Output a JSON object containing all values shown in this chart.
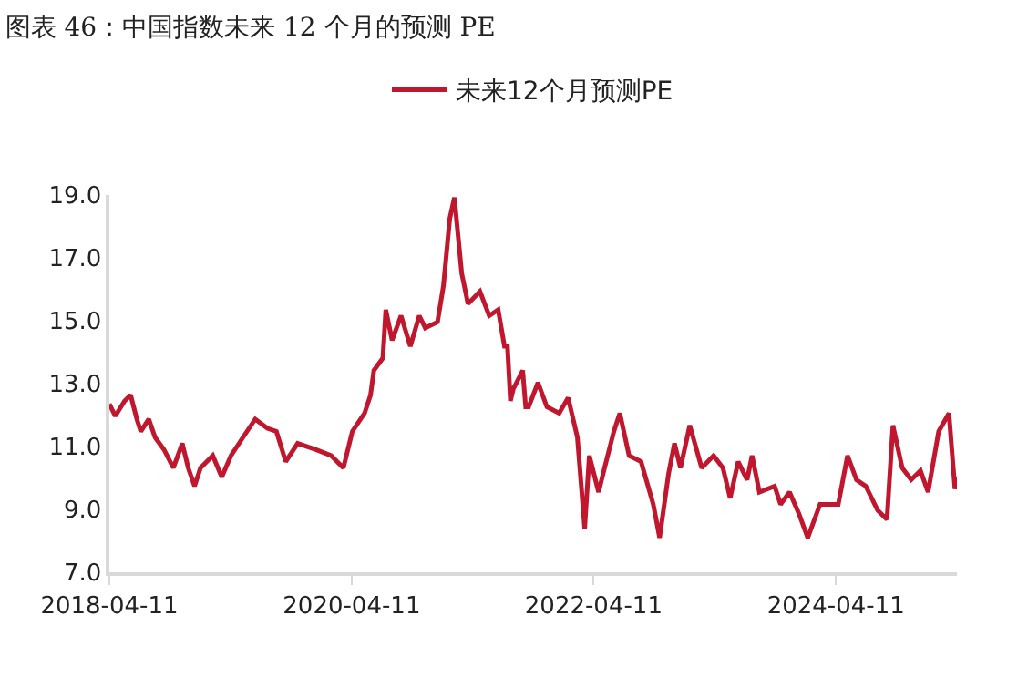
{
  "chart_data": {
    "type": "line",
    "title": "图表 46：中国指数未来 12 个月的预测 PE",
    "legend": "top",
    "marker": "none",
    "line_style": "solid",
    "xlim": [
      "2018-04-11",
      "2025-04-11"
    ],
    "xticks": [
      "2018-04-11",
      "2020-04-11",
      "2022-04-11",
      "2024-04-11"
    ],
    "ylim": [
      7,
      19
    ],
    "yticks": [
      {
        "value": 7,
        "label": "7.0"
      },
      {
        "value": 9,
        "label": "9.0"
      },
      {
        "value": 11,
        "label": "11.0"
      },
      {
        "value": 13,
        "label": "13.0"
      },
      {
        "value": 15,
        "label": "15.0"
      },
      {
        "value": 17,
        "label": "17.0"
      },
      {
        "value": 19,
        "label": "19.0"
      }
    ],
    "x": [
      "2018-04-11",
      "2018-04-29",
      "2018-05-27",
      "2018-06-14",
      "2018-07-03",
      "2018-07-15",
      "2018-08-08",
      "2018-08-27",
      "2018-09-23",
      "2018-10-21",
      "2018-11-17",
      "2018-12-05",
      "2018-12-24",
      "2019-01-11",
      "2019-02-17",
      "2019-03-16",
      "2019-04-13",
      "2019-05-19",
      "2019-06-25",
      "2019-08-01",
      "2019-08-28",
      "2019-09-25",
      "2019-10-31",
      "2019-12-25",
      "2020-02-09",
      "2020-03-17",
      "2020-04-13",
      "2020-05-20",
      "2020-06-07",
      "2020-06-17",
      "2020-07-14",
      "2020-07-23",
      "2020-08-11",
      "2020-09-07",
      "2020-10-05",
      "2020-11-01",
      "2020-11-19",
      "2020-12-26",
      "2021-01-13",
      "2021-02-01",
      "2021-02-15",
      "2021-03-09",
      "2021-03-28",
      "2021-05-03",
      "2021-05-31",
      "2021-06-27",
      "2021-07-16",
      "2021-07-25",
      "2021-08-03",
      "2021-08-12",
      "2021-08-31",
      "2021-09-09",
      "2021-09-18",
      "2021-09-27",
      "2021-10-25",
      "2021-11-21",
      "2021-12-28",
      "2022-01-24",
      "2022-02-21",
      "2022-03-15",
      "2022-03-29",
      "2022-04-26",
      "2022-05-14",
      "2022-06-11",
      "2022-06-29",
      "2022-07-27",
      "2022-09-01",
      "2022-10-08",
      "2022-10-27",
      "2022-11-23",
      "2022-12-11",
      "2022-12-29",
      "2023-01-26",
      "2023-03-03",
      "2023-04-08",
      "2023-05-06",
      "2023-05-28",
      "2023-06-21",
      "2023-07-18",
      "2023-08-02",
      "2023-08-24",
      "2023-10-09",
      "2023-10-27",
      "2023-11-23",
      "2023-12-21",
      "2024-01-17",
      "2024-02-23",
      "2024-04-18",
      "2024-05-16",
      "2024-06-12",
      "2024-07-10",
      "2024-08-15",
      "2024-09-12",
      "2024-09-30",
      "2024-10-28",
      "2024-11-24",
      "2024-12-22",
      "2025-01-14",
      "2025-02-15",
      "2025-03-18",
      "2025-04-05",
      "2025-04-10"
    ],
    "series": [
      {
        "name": "未来12个月预测PE",
        "color": "#c0172e",
        "values": [
          12.35,
          11.97,
          12.45,
          12.64,
          11.87,
          11.48,
          11.87,
          11.29,
          10.9,
          10.32,
          11.1,
          10.32,
          9.74,
          10.32,
          10.71,
          10.03,
          10.71,
          11.29,
          11.87,
          11.58,
          11.48,
          10.52,
          11.1,
          10.9,
          10.71,
          10.32,
          11.48,
          12.06,
          12.64,
          13.42,
          13.81,
          15.35,
          14.38,
          15.16,
          14.19,
          15.16,
          14.77,
          14.96,
          16.12,
          18.25,
          18.92,
          16.51,
          15.54,
          15.93,
          15.16,
          15.35,
          14.19,
          14.19,
          12.45,
          12.84,
          13.23,
          13.42,
          12.26,
          12.26,
          13.03,
          12.26,
          12.06,
          12.55,
          11.29,
          8.39,
          10.71,
          9.55,
          10.32,
          11.48,
          12.06,
          10.71,
          10.52,
          9.16,
          8.1,
          10.13,
          11.1,
          10.32,
          11.67,
          10.32,
          10.71,
          10.32,
          9.36,
          10.52,
          9.94,
          10.71,
          9.55,
          9.74,
          9.16,
          9.55,
          8.87,
          8.1,
          9.16,
          9.16,
          10.71,
          9.94,
          9.74,
          8.97,
          8.68,
          11.67,
          10.32,
          9.94,
          10.23,
          9.55,
          11.48,
          12.06,
          9.65,
          10.03
        ]
      }
    ]
  }
}
